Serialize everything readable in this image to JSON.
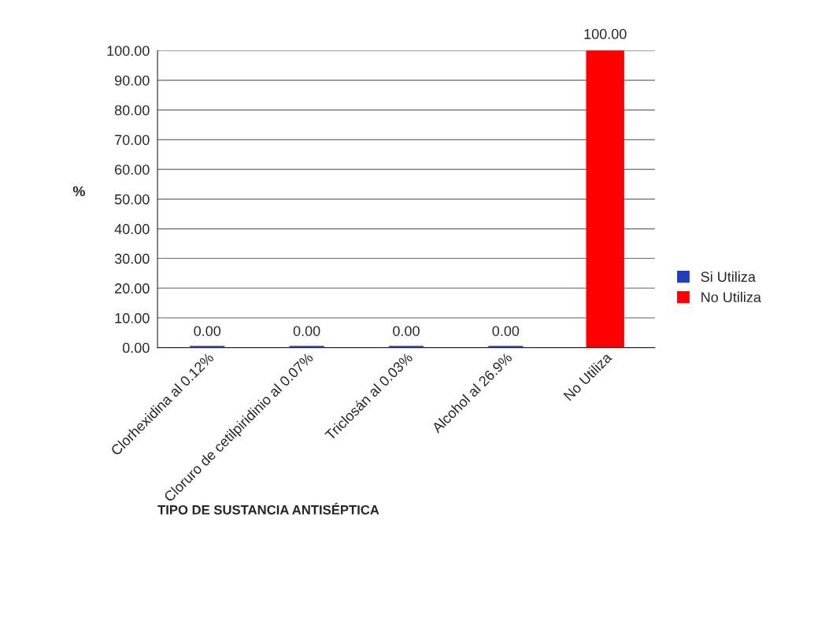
{
  "chart_data": {
    "type": "bar",
    "ylabel": "%",
    "xlabel": "TIPO DE SUSTANCIA ANTISÉPTICA",
    "categories": [
      "Clorhexidina al 0.12%",
      "Cloruro de cetilpiridinio al 0.07%",
      "Triclosán al 0.03%",
      "Alcohol al 26.9%",
      "No Utiliza"
    ],
    "series": [
      {
        "name": "Si Utiliza",
        "color": "#1f3fbf",
        "values": [
          0,
          0,
          0,
          0,
          null
        ],
        "value_labels": [
          "0.00",
          "0.00",
          "0.00",
          "0.00",
          null
        ]
      },
      {
        "name": "No Utiliza",
        "color": "#ff0000",
        "values": [
          null,
          null,
          null,
          null,
          100
        ],
        "value_labels": [
          null,
          null,
          null,
          null,
          "100.00"
        ]
      }
    ],
    "ylim": [
      0,
      100
    ],
    "yticks": [
      {
        "value": 0,
        "label": "0.00"
      },
      {
        "value": 10,
        "label": "10.00"
      },
      {
        "value": 20,
        "label": "20.00"
      },
      {
        "value": 30,
        "label": "30.00"
      },
      {
        "value": 40,
        "label": "40.00"
      },
      {
        "value": 50,
        "label": "50.00"
      },
      {
        "value": 60,
        "label": "60.00"
      },
      {
        "value": 70,
        "label": "70.00"
      },
      {
        "value": 80,
        "label": "80.00"
      },
      {
        "value": 90,
        "label": "90.00"
      },
      {
        "value": 100,
        "label": "100.00"
      }
    ],
    "grid": "y",
    "legend": "right"
  }
}
